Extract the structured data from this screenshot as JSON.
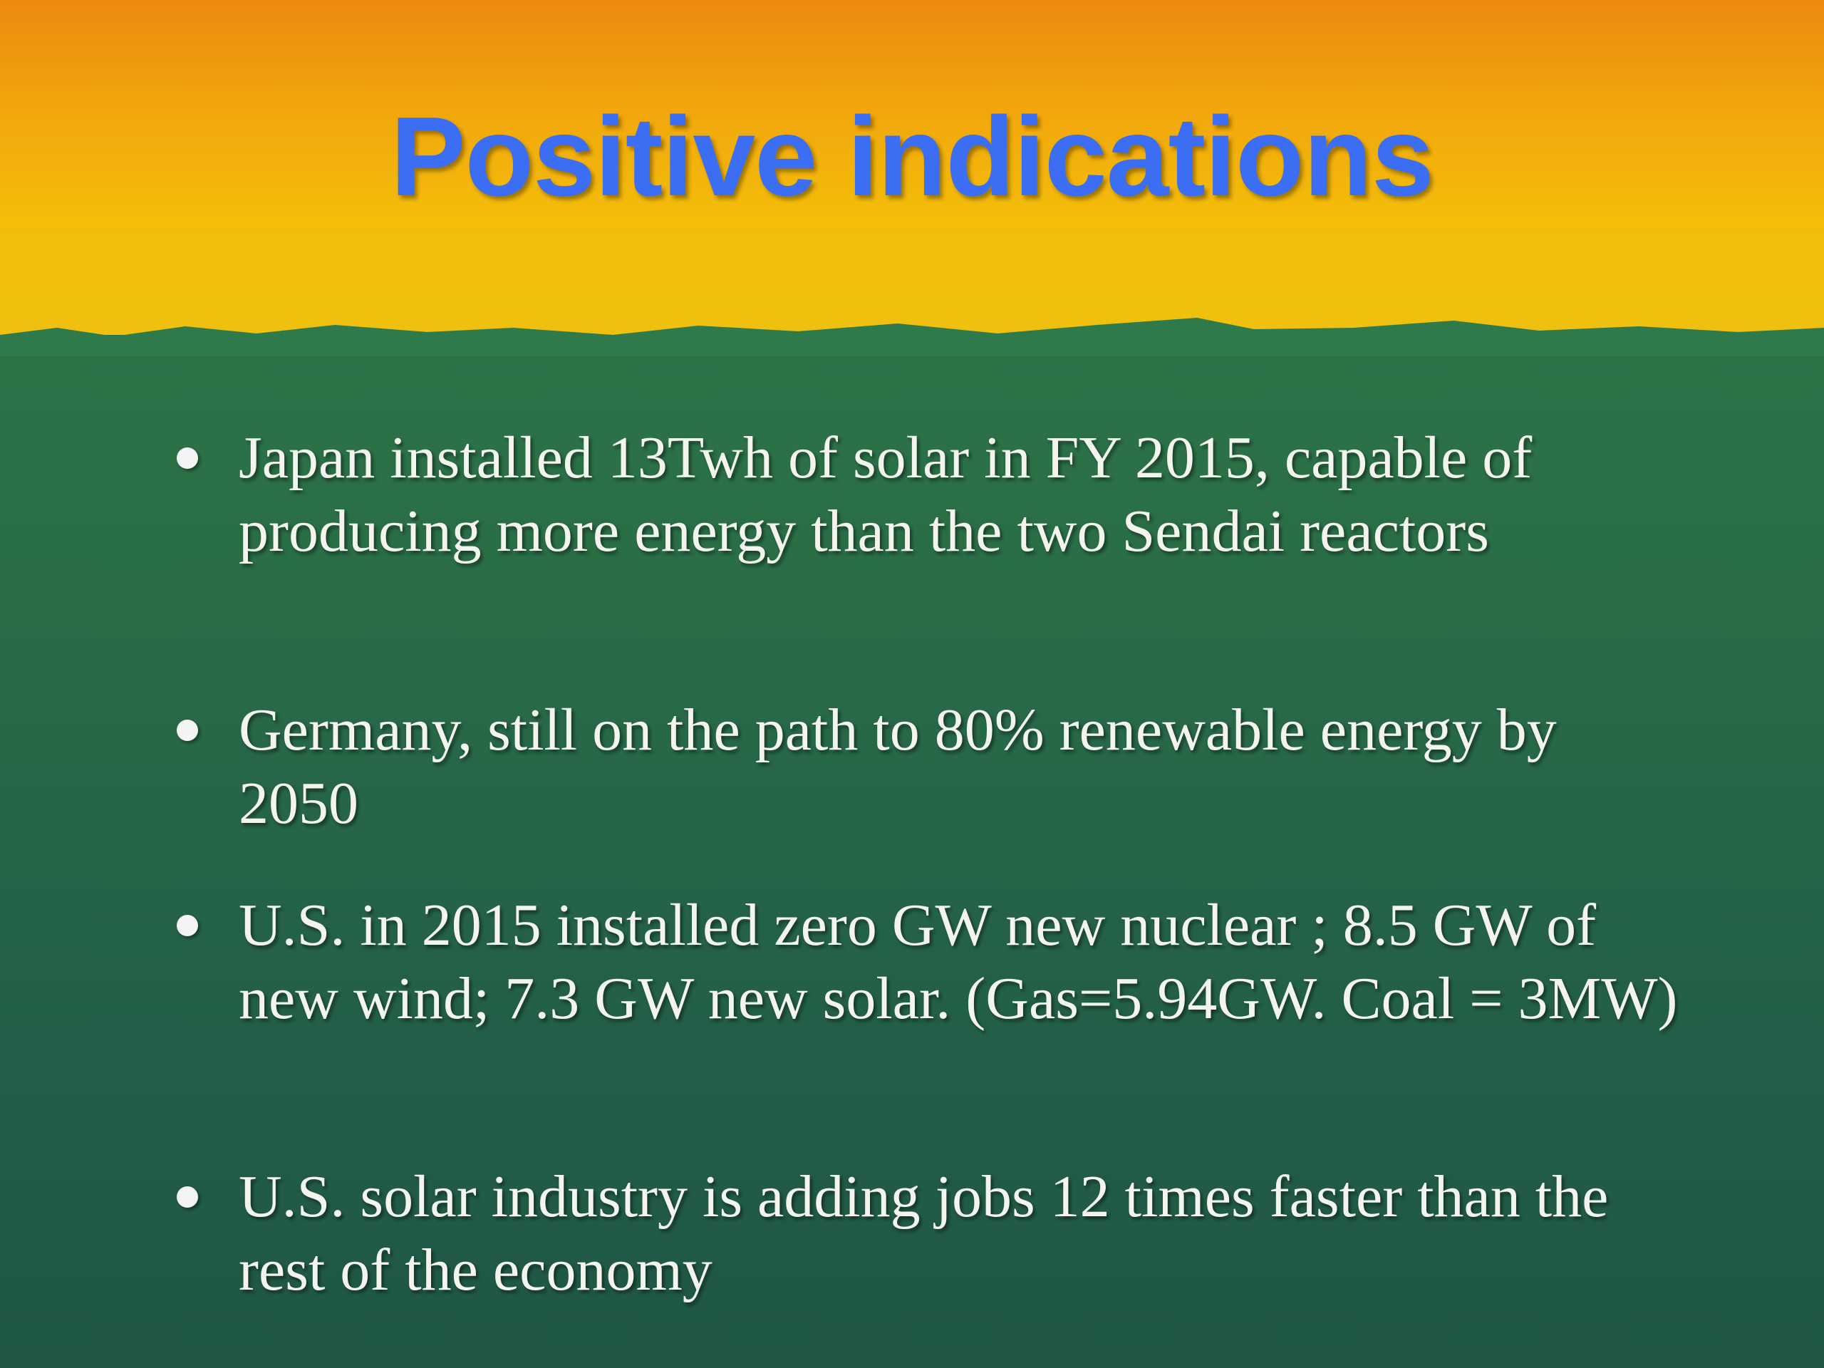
{
  "title": "Positive indications",
  "bullets": [
    "Japan installed 13Twh of solar in FY 2015, capable of producing more energy than the two Sendai reactors",
    "Germany, still on the path to 80% renewable energy by 2050",
    "U.S. in 2015 installed zero GW new nuclear ; 8.5 GW of new wind; 7.3 GW new solar. (Gas=5.94GW. Coal = 3MW)",
    "U.S. solar industry is adding jobs 12 times faster than the rest of the economy"
  ]
}
